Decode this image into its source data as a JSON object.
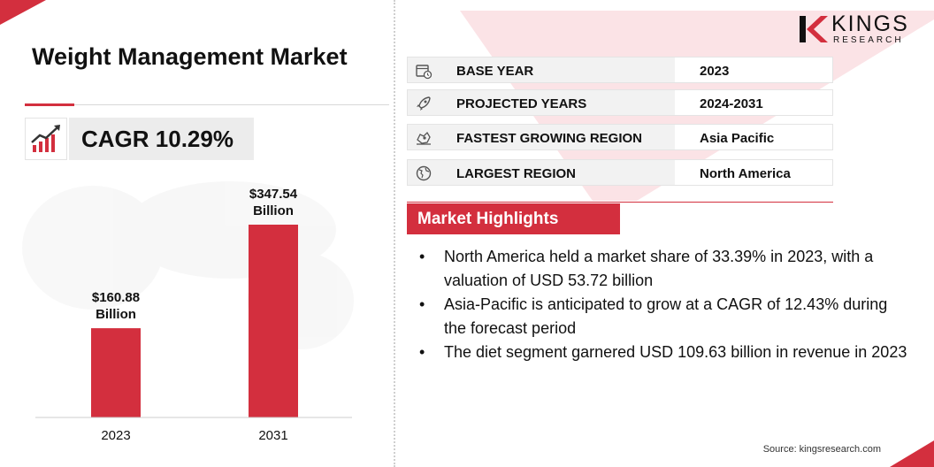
{
  "title": "Weight Management Market",
  "cagr": {
    "label": "CAGR 10.29%",
    "icon": "growth-chart-icon"
  },
  "logo": {
    "name": "KINGS",
    "sub": "RESEARCH",
    "accent_color": "#d32f3e"
  },
  "info": [
    {
      "icon": "calendar-clock-icon",
      "label": "BASE YEAR",
      "value": "2023"
    },
    {
      "icon": "rocket-icon",
      "label": "PROJECTED YEARS",
      "value": "2024-2031"
    },
    {
      "icon": "region-map-icon",
      "label": "FASTEST GROWING REGION",
      "value": "Asia Pacific"
    },
    {
      "icon": "globe-icon",
      "label": "LARGEST REGION",
      "value": "North America"
    }
  ],
  "highlights": {
    "title": "Market Highlights",
    "items": [
      "North America held a market share of 33.39% in 2023, with a valuation of USD 53.72 billion",
      "Asia-Pacific is anticipated to grow at a CAGR of 12.43% during the forecast period",
      "The diet segment garnered USD 109.63 billion in revenue in 2023"
    ]
  },
  "source": "Source: kingsresearch.com",
  "chart_data": {
    "type": "bar",
    "categories": [
      "2023",
      "2031"
    ],
    "values": [
      160.88,
      347.54
    ],
    "data_labels": [
      [
        "$160.88",
        "Billion"
      ],
      [
        "$347.54",
        "Billion"
      ]
    ],
    "color": "#d32f3e",
    "ylim": [
      0,
      347.54
    ],
    "grid": false,
    "title": "",
    "xlabel": "",
    "ylabel": ""
  }
}
